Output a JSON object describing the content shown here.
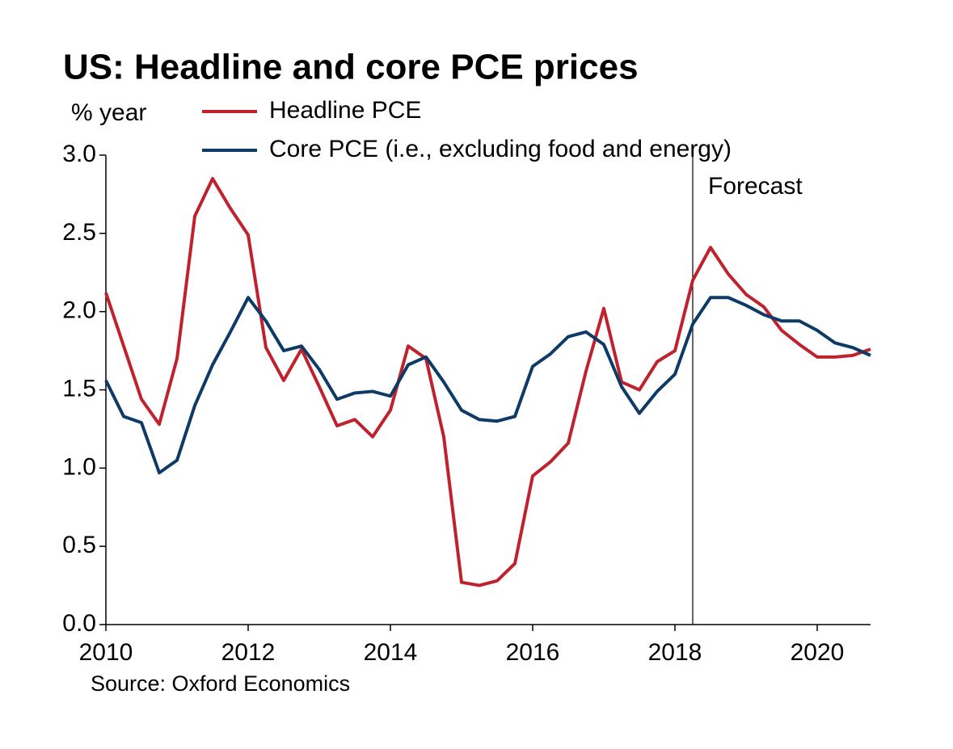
{
  "chart_data": {
    "type": "line",
    "title": "US: Headline and core PCE prices",
    "y_label": "% year",
    "source": "Source: Oxford Economics",
    "annotation": "Forecast",
    "forecast_start": 2018.25,
    "x": [
      2010,
      2010.25,
      2010.5,
      2010.75,
      2011,
      2011.25,
      2011.5,
      2011.75,
      2012,
      2012.25,
      2012.5,
      2012.75,
      2013,
      2013.25,
      2013.5,
      2013.75,
      2014,
      2014.25,
      2014.5,
      2014.75,
      2015,
      2015.25,
      2015.5,
      2015.75,
      2016,
      2016.25,
      2016.5,
      2016.75,
      2017,
      2017.25,
      2017.5,
      2017.75,
      2018,
      2018.25,
      2018.5,
      2018.75,
      2019,
      2019.25,
      2019.5,
      2019.75,
      2020,
      2020.25,
      2020.5,
      2020.75
    ],
    "series": [
      {
        "name": "Headline PCE",
        "color": "#c0222d",
        "values": [
          2.12,
          1.78,
          1.44,
          1.28,
          1.7,
          2.61,
          2.85,
          2.66,
          2.49,
          1.77,
          1.56,
          1.76,
          1.52,
          1.27,
          1.31,
          1.2,
          1.37,
          1.78,
          1.7,
          1.2,
          0.27,
          0.25,
          0.28,
          0.39,
          0.95,
          1.04,
          1.16,
          1.62,
          2.02,
          1.55,
          1.5,
          1.68,
          1.75,
          2.2,
          2.41,
          2.24,
          2.11,
          2.03,
          1.88,
          1.79,
          1.71,
          1.71,
          1.72,
          1.76
        ]
      },
      {
        "name": "Core PCE (i.e., excluding food and energy)",
        "color": "#0d3a66",
        "values": [
          1.56,
          1.33,
          1.29,
          0.97,
          1.05,
          1.4,
          1.66,
          1.87,
          2.09,
          1.94,
          1.75,
          1.78,
          1.63,
          1.44,
          1.48,
          1.49,
          1.46,
          1.66,
          1.71,
          1.55,
          1.37,
          1.31,
          1.3,
          1.33,
          1.65,
          1.73,
          1.84,
          1.87,
          1.79,
          1.52,
          1.35,
          1.49,
          1.6,
          1.92,
          2.09,
          2.09,
          2.04,
          1.98,
          1.94,
          1.94,
          1.88,
          1.8,
          1.77,
          1.72
        ]
      }
    ],
    "xlim": [
      2010,
      2020.75
    ],
    "xticks": [
      2010,
      2012,
      2014,
      2016,
      2018,
      2020
    ],
    "ylim": [
      0,
      3
    ],
    "yticks": [
      {
        "value": 0,
        "label": "0.0"
      },
      {
        "value": 0.5,
        "label": "0.5"
      },
      {
        "value": 1,
        "label": "1.0"
      },
      {
        "value": 1.5,
        "label": "1.5"
      },
      {
        "value": 2,
        "label": "2.0"
      },
      {
        "value": 2.5,
        "label": "2.5"
      },
      {
        "value": 3,
        "label": "3.0"
      }
    ],
    "grid": false
  }
}
